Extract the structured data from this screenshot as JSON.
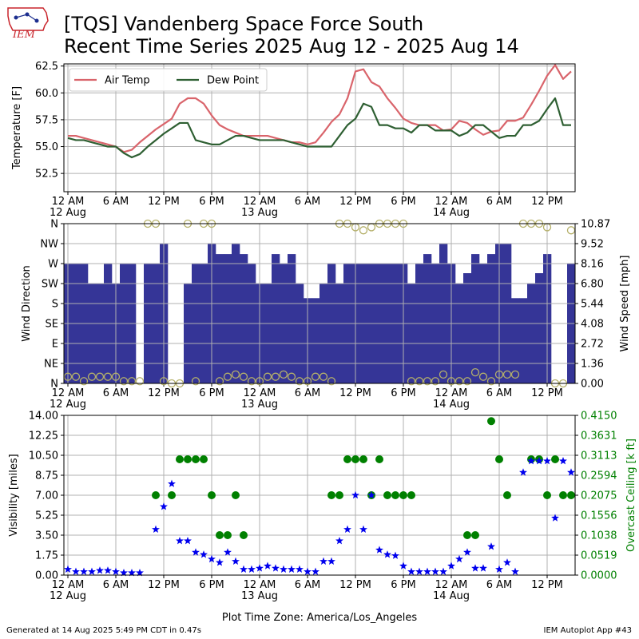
{
  "header": {
    "title_line1": "[TQS] Vandenberg Space Force South",
    "title_line2": "Recent Time Series 2025 Aug 12 - 2025 Aug 14",
    "logo_text": "IEM"
  },
  "footer": {
    "left": "Generated at 14 Aug 2025 5:49 PM CDT in 0.47s",
    "center": "Plot Time Zone: America/Los_Angeles",
    "right": "IEM Autoplot App #43"
  },
  "colors": {
    "air_temp": "#d9646b",
    "dew_point": "#2e5f32",
    "wind_bar": "#353597",
    "wind_dir": "#b5b06a",
    "visibility": "#0000ee",
    "ceiling": "#008000",
    "grid": "#b0b0b0"
  },
  "x_axis": {
    "hours_range": [
      -0.5,
      63.5
    ],
    "ticks": [
      {
        "h": 0,
        "label": "12 AM",
        "date": "12 Aug"
      },
      {
        "h": 6,
        "label": "6 AM",
        "date": ""
      },
      {
        "h": 12,
        "label": "12 PM",
        "date": ""
      },
      {
        "h": 18,
        "label": "6 PM",
        "date": ""
      },
      {
        "h": 24,
        "label": "12 AM",
        "date": "13 Aug"
      },
      {
        "h": 30,
        "label": "6 AM",
        "date": ""
      },
      {
        "h": 36,
        "label": "12 PM",
        "date": ""
      },
      {
        "h": 42,
        "label": "6 PM",
        "date": ""
      },
      {
        "h": 48,
        "label": "12 AM",
        "date": "14 Aug"
      },
      {
        "h": 54,
        "label": "6 AM",
        "date": ""
      },
      {
        "h": 60,
        "label": "12 PM",
        "date": ""
      }
    ]
  },
  "chart_data": [
    {
      "type": "line",
      "ylabel": "Temperature [F]",
      "ylim": [
        50.8,
        62.7
      ],
      "yticks": [
        52.5,
        55.0,
        57.5,
        60.0,
        62.5
      ],
      "ytick_labels": [
        "52.5",
        "55.0",
        "57.5",
        "60.0",
        "62.5"
      ],
      "grid": true,
      "legend_position": "top-left",
      "x": [
        0,
        1,
        2,
        3,
        4,
        5,
        6,
        7,
        8,
        9,
        10,
        11,
        12,
        13,
        14,
        15,
        16,
        17,
        18,
        19,
        20,
        21,
        22,
        23,
        24,
        25,
        26,
        27,
        28,
        29,
        30,
        31,
        32,
        33,
        34,
        35,
        36,
        37,
        38,
        39,
        40,
        41,
        42,
        43,
        44,
        45,
        46,
        47,
        48,
        49,
        50,
        51,
        52,
        53,
        54,
        55,
        56,
        57,
        58,
        59,
        60,
        61,
        62,
        63
      ],
      "series": [
        {
          "name": "Air Temp",
          "values": [
            56.0,
            56.0,
            55.8,
            55.6,
            55.4,
            55.2,
            55.0,
            54.5,
            54.7,
            55.4,
            56.0,
            56.6,
            57.1,
            57.6,
            59.0,
            59.5,
            59.5,
            59.0,
            57.9,
            57.0,
            56.6,
            56.3,
            56.0,
            56.0,
            56.0,
            56.0,
            55.8,
            55.6,
            55.4,
            55.4,
            55.2,
            55.4,
            56.3,
            57.3,
            58.0,
            59.5,
            62.0,
            62.2,
            61.0,
            60.6,
            59.5,
            58.6,
            57.6,
            57.2,
            57.0,
            57.0,
            57.0,
            56.5,
            56.6,
            57.4,
            57.2,
            56.6,
            56.1,
            56.4,
            56.5,
            57.4,
            57.4,
            57.7,
            58.9,
            60.2,
            61.6,
            62.6,
            61.3,
            62.0
          ]
        },
        {
          "name": "Dew Point",
          "values": [
            55.8,
            55.6,
            55.6,
            55.4,
            55.2,
            55.0,
            55.0,
            54.4,
            54.0,
            54.3,
            55.0,
            55.6,
            56.2,
            56.7,
            57.2,
            57.2,
            55.6,
            55.4,
            55.2,
            55.2,
            55.6,
            56.0,
            56.0,
            55.8,
            55.6,
            55.6,
            55.6,
            55.6,
            55.4,
            55.2,
            55.0,
            55.0,
            55.0,
            55.0,
            56.0,
            57.0,
            57.6,
            59.0,
            58.7,
            57.0,
            57.0,
            56.7,
            56.7,
            56.3,
            57.0,
            57.0,
            56.5,
            56.5,
            56.5,
            56.0,
            56.3,
            57.0,
            57.0,
            56.4,
            55.8,
            56.0,
            56.0,
            57.0,
            57.0,
            57.4,
            58.5,
            59.5,
            57.0,
            57.0
          ]
        }
      ]
    },
    {
      "type": "bar",
      "ylabel": "Wind Direction",
      "y2label": "Wind Speed [mph]",
      "direction_labels": [
        "N",
        "NE",
        "E",
        "SE",
        "S",
        "SW",
        "W",
        "NW",
        "N"
      ],
      "speed_ticks": [
        "0.00",
        "1.36",
        "2.72",
        "4.08",
        "5.44",
        "6.80",
        "8.16",
        "9.52",
        "10.87"
      ],
      "speed_ylim": [
        0,
        10.87
      ],
      "grid": true,
      "x": [
        0,
        1,
        2,
        3,
        4,
        5,
        6,
        7,
        8,
        9,
        10,
        11,
        12,
        13,
        14,
        15,
        16,
        17,
        18,
        19,
        20,
        21,
        22,
        23,
        24,
        25,
        26,
        27,
        28,
        29,
        30,
        31,
        32,
        33,
        34,
        35,
        36,
        37,
        38,
        39,
        40,
        41,
        42,
        43,
        44,
        45,
        46,
        47,
        48,
        49,
        50,
        51,
        52,
        53,
        54,
        55,
        56,
        57,
        58,
        59,
        60,
        61,
        62,
        63
      ],
      "series": [
        {
          "name": "Wind Speed",
          "values": [
            8.16,
            8.16,
            8.16,
            6.8,
            6.8,
            8.16,
            6.8,
            8.16,
            8.16,
            0,
            8.16,
            8.16,
            9.52,
            0,
            0,
            6.8,
            8.16,
            8.16,
            9.52,
            8.8,
            8.8,
            9.52,
            8.8,
            8.16,
            6.8,
            6.8,
            8.8,
            8.16,
            8.8,
            6.8,
            5.8,
            5.8,
            6.8,
            8.16,
            6.8,
            8.16,
            8.16,
            8.16,
            8.16,
            8.16,
            8.16,
            8.16,
            8.16,
            6.8,
            8.16,
            8.8,
            8.16,
            9.52,
            8.16,
            6.8,
            7.5,
            8.8,
            8.16,
            8.8,
            9.52,
            9.52,
            5.8,
            5.8,
            6.8,
            7.5,
            8.8,
            0,
            0,
            8.16
          ]
        },
        {
          "name": "Wind Direction",
          "values": [
            15,
            15,
            5,
            15,
            15,
            15,
            15,
            5,
            5,
            5,
            360,
            360,
            5,
            0,
            0,
            360,
            5,
            360,
            360,
            5,
            15,
            20,
            15,
            5,
            5,
            15,
            15,
            20,
            15,
            5,
            5,
            15,
            15,
            5,
            360,
            360,
            352,
            345,
            352,
            360,
            360,
            360,
            360,
            5,
            5,
            5,
            5,
            20,
            5,
            5,
            5,
            25,
            15,
            5,
            20,
            20,
            20,
            360,
            360,
            360,
            352,
            0,
            0,
            345
          ]
        }
      ]
    },
    {
      "type": "scatter",
      "ylabel": "Visibility [miles]",
      "y2label": "Overcast Ceiling [k ft]",
      "ylim": [
        0,
        14
      ],
      "yticks": [
        "0.00",
        "1.75",
        "3.50",
        "5.25",
        "7.00",
        "8.75",
        "10.50",
        "12.25",
        "14.00"
      ],
      "y2ticks": [
        "0.0000",
        "0.0519",
        "0.1038",
        "0.1556",
        "0.2075",
        "0.2594",
        "0.3113",
        "0.3631",
        "0.4150"
      ],
      "y2lim": [
        0,
        0.415
      ],
      "grid": true,
      "series": [
        {
          "name": "Visibility",
          "x": [
            0,
            1,
            2,
            3,
            4,
            5,
            6,
            7,
            8,
            9,
            11,
            12,
            13,
            14,
            15,
            16,
            17,
            18,
            19,
            20,
            21,
            22,
            23,
            24,
            25,
            26,
            27,
            28,
            29,
            30,
            31,
            32,
            33,
            34,
            35,
            36,
            37,
            38,
            39,
            40,
            41,
            42,
            43,
            44,
            45,
            46,
            47,
            48,
            49,
            50,
            51,
            52,
            53,
            54,
            55,
            56,
            57,
            58,
            59,
            60,
            61,
            62,
            63
          ],
          "values": [
            0.5,
            0.3,
            0.3,
            0.3,
            0.4,
            0.4,
            0.3,
            0.2,
            0.2,
            0.2,
            4,
            6,
            8,
            3,
            3,
            2,
            1.8,
            1.4,
            1.1,
            2,
            1.2,
            0.5,
            0.5,
            0.6,
            0.8,
            0.6,
            0.5,
            0.5,
            0.5,
            0.3,
            0.3,
            1.2,
            1.2,
            3,
            4,
            7,
            4,
            7,
            2.2,
            1.8,
            1.7,
            0.8,
            0.3,
            0.3,
            0.3,
            0.3,
            0.3,
            0.8,
            1.4,
            2,
            0.6,
            0.6,
            2.5,
            0.5,
            1.1,
            0.3,
            9,
            10,
            10,
            10,
            5,
            10,
            9
          ]
        },
        {
          "name": "Overcast Ceiling",
          "x": [
            11,
            13,
            14,
            15,
            16,
            17,
            18,
            19,
            20,
            21,
            22,
            33,
            34,
            35,
            36,
            37,
            38,
            39,
            40,
            41,
            42,
            43,
            50,
            51,
            53,
            54,
            55,
            58,
            59,
            60,
            61,
            62,
            63
          ],
          "values": [
            0.2075,
            0.2075,
            0.3009,
            0.3009,
            0.3009,
            0.3009,
            0.2075,
            0.1038,
            0.1038,
            0.2075,
            0.1038,
            0.2075,
            0.2075,
            0.3009,
            0.3009,
            0.3009,
            0.2075,
            0.3009,
            0.2075,
            0.2075,
            0.2075,
            0.2075,
            0.1038,
            0.1038,
            0.4,
            0.3009,
            0.2075,
            0.3009,
            0.3009,
            0.2075,
            0.3009,
            0.2075,
            0.2075
          ]
        }
      ]
    }
  ]
}
